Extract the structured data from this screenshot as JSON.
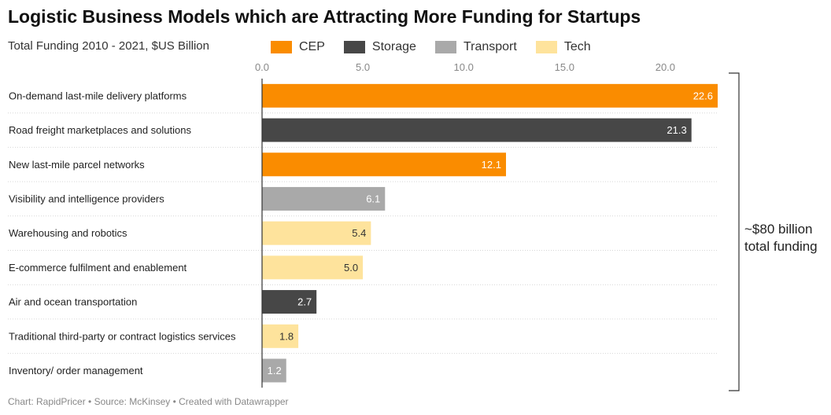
{
  "chart_data": {
    "type": "bar",
    "orientation": "horizontal",
    "title": "Logistic Business Models which are Attracting More Funding for Startups",
    "subtitle": "Total Funding 2010 - 2021, $US Billion",
    "categories": [
      "On-demand last-mile delivery platforms",
      "Road freight marketplaces and solutions",
      "New last-mile parcel networks",
      "Visibility and intelligence providers",
      "Warehousing and robotics",
      "E-commerce fulfilment and enablement",
      "Air and ocean transportation",
      "Traditional third-party or contract logistics services",
      "Inventory/ order management"
    ],
    "values": [
      22.6,
      21.3,
      12.1,
      6.1,
      5.4,
      5.0,
      2.7,
      1.8,
      1.2
    ],
    "value_labels": [
      "22.6",
      "21.3",
      "12.1",
      "6.1",
      "5.4",
      "5.0",
      "2.7",
      "1.8",
      "1.2"
    ],
    "bar_groups": [
      "CEP",
      "Storage",
      "CEP",
      "Transport",
      "Tech",
      "Tech",
      "Storage",
      "Tech",
      "Transport"
    ],
    "legend": [
      {
        "name": "CEP",
        "color": "#fa8c00"
      },
      {
        "name": "Storage",
        "color": "#474747"
      },
      {
        "name": "Transport",
        "color": "#a9a9a9"
      },
      {
        "name": "Tech",
        "color": "#fee39c"
      }
    ],
    "legend_position": "top",
    "xlim": [
      0,
      22.6
    ],
    "x_ticks": [
      0,
      5,
      10,
      15,
      20
    ],
    "x_tick_labels": [
      "0.0",
      "5.0",
      "10.0",
      "15.0",
      "20.0"
    ],
    "x_axis_position": "top",
    "grid": "horizontal-dotted",
    "annotation": [
      "~$80 billion",
      "total funding"
    ]
  },
  "footer": "Chart: RapidPricer • Source: McKinsey • Created with Datawrapper"
}
